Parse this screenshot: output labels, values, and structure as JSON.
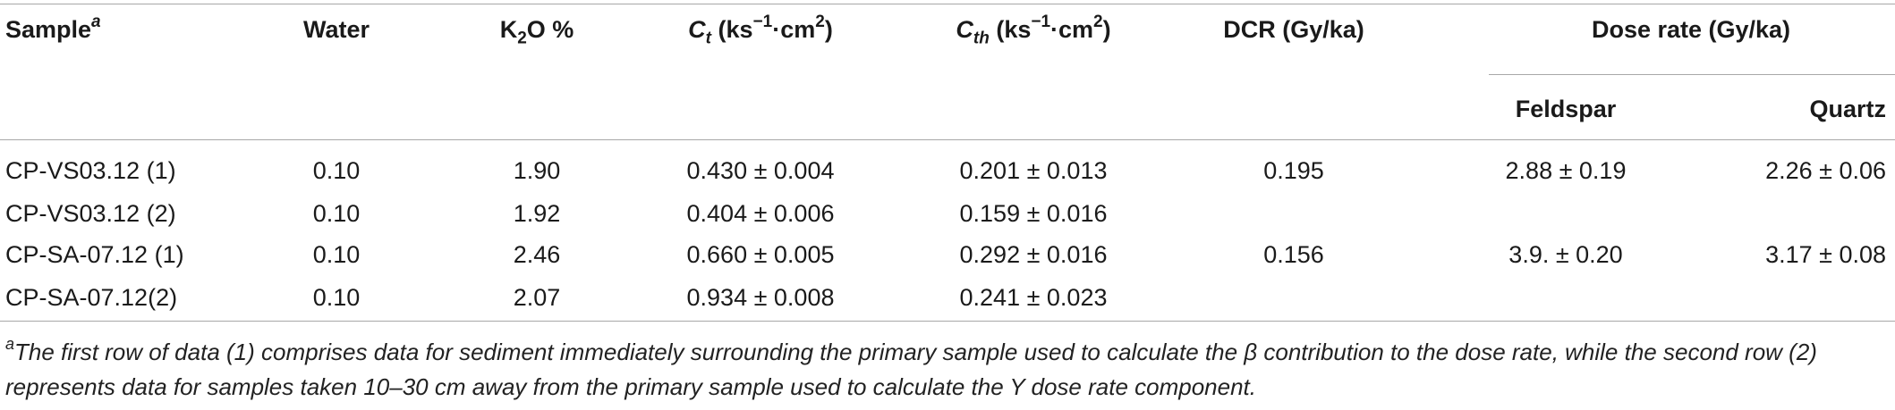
{
  "headers": {
    "sample": "Sample",
    "sample_sup": "a",
    "water": "Water",
    "k2o_pre": "K",
    "k2o_sub": "2",
    "k2o_post": "O %",
    "ct_sym": "C",
    "ct_sub": "t",
    "ct_unit_pre": "(ks",
    "ct_unit_sup1": "−1",
    "ct_unit_mid": "·cm",
    "ct_unit_sup2": "2",
    "ct_unit_post": ")",
    "cth_sym": "C",
    "cth_sub": "th",
    "cth_unit_pre": "(ks",
    "cth_unit_sup1": "−1",
    "cth_unit_mid": "·cm",
    "cth_unit_sup2": "2",
    "cth_unit_post": ")",
    "dcr": "DCR (Gy/ka)",
    "dose_rate": "Dose rate (Gy/ka)",
    "feldspar": "Feldspar",
    "quartz": "Quartz"
  },
  "rows": [
    {
      "sample": "CP-VS03.12 (1)",
      "water": "0.10",
      "k2o": "1.90",
      "ct": "0.430 ± 0.004",
      "cth": "0.201 ± 0.013",
      "dcr": "0.195",
      "feldspar": "2.88 ± 0.19",
      "quartz": "2.26 ± 0.06"
    },
    {
      "sample": "CP-VS03.12 (2)",
      "water": "0.10",
      "k2o": "1.92",
      "ct": "0.404 ± 0.006",
      "cth": "0.159 ± 0.016",
      "dcr": "",
      "feldspar": "",
      "quartz": ""
    },
    {
      "sample": "CP-SA-07.12 (1)",
      "water": "0.10",
      "k2o": "2.46",
      "ct": "0.660 ± 0.005",
      "cth": "0.292 ± 0.016",
      "dcr": "0.156",
      "feldspar": "3.9. ± 0.20",
      "quartz": "3.17 ± 0.08"
    },
    {
      "sample": "CP-SA-07.12(2)",
      "water": "0.10",
      "k2o": "2.07",
      "ct": "0.934 ± 0.008",
      "cth": "0.241 ± 0.023",
      "dcr": "",
      "feldspar": "",
      "quartz": ""
    }
  ],
  "footnote": {
    "marker": "a",
    "text": "The first row of data (1) comprises data for sediment immediately surrounding the primary sample used to calculate the β contribution to the dose rate, while the second row (2) represents data for samples taken 10–30 cm away from the primary sample used to calculate the Y dose rate component."
  }
}
